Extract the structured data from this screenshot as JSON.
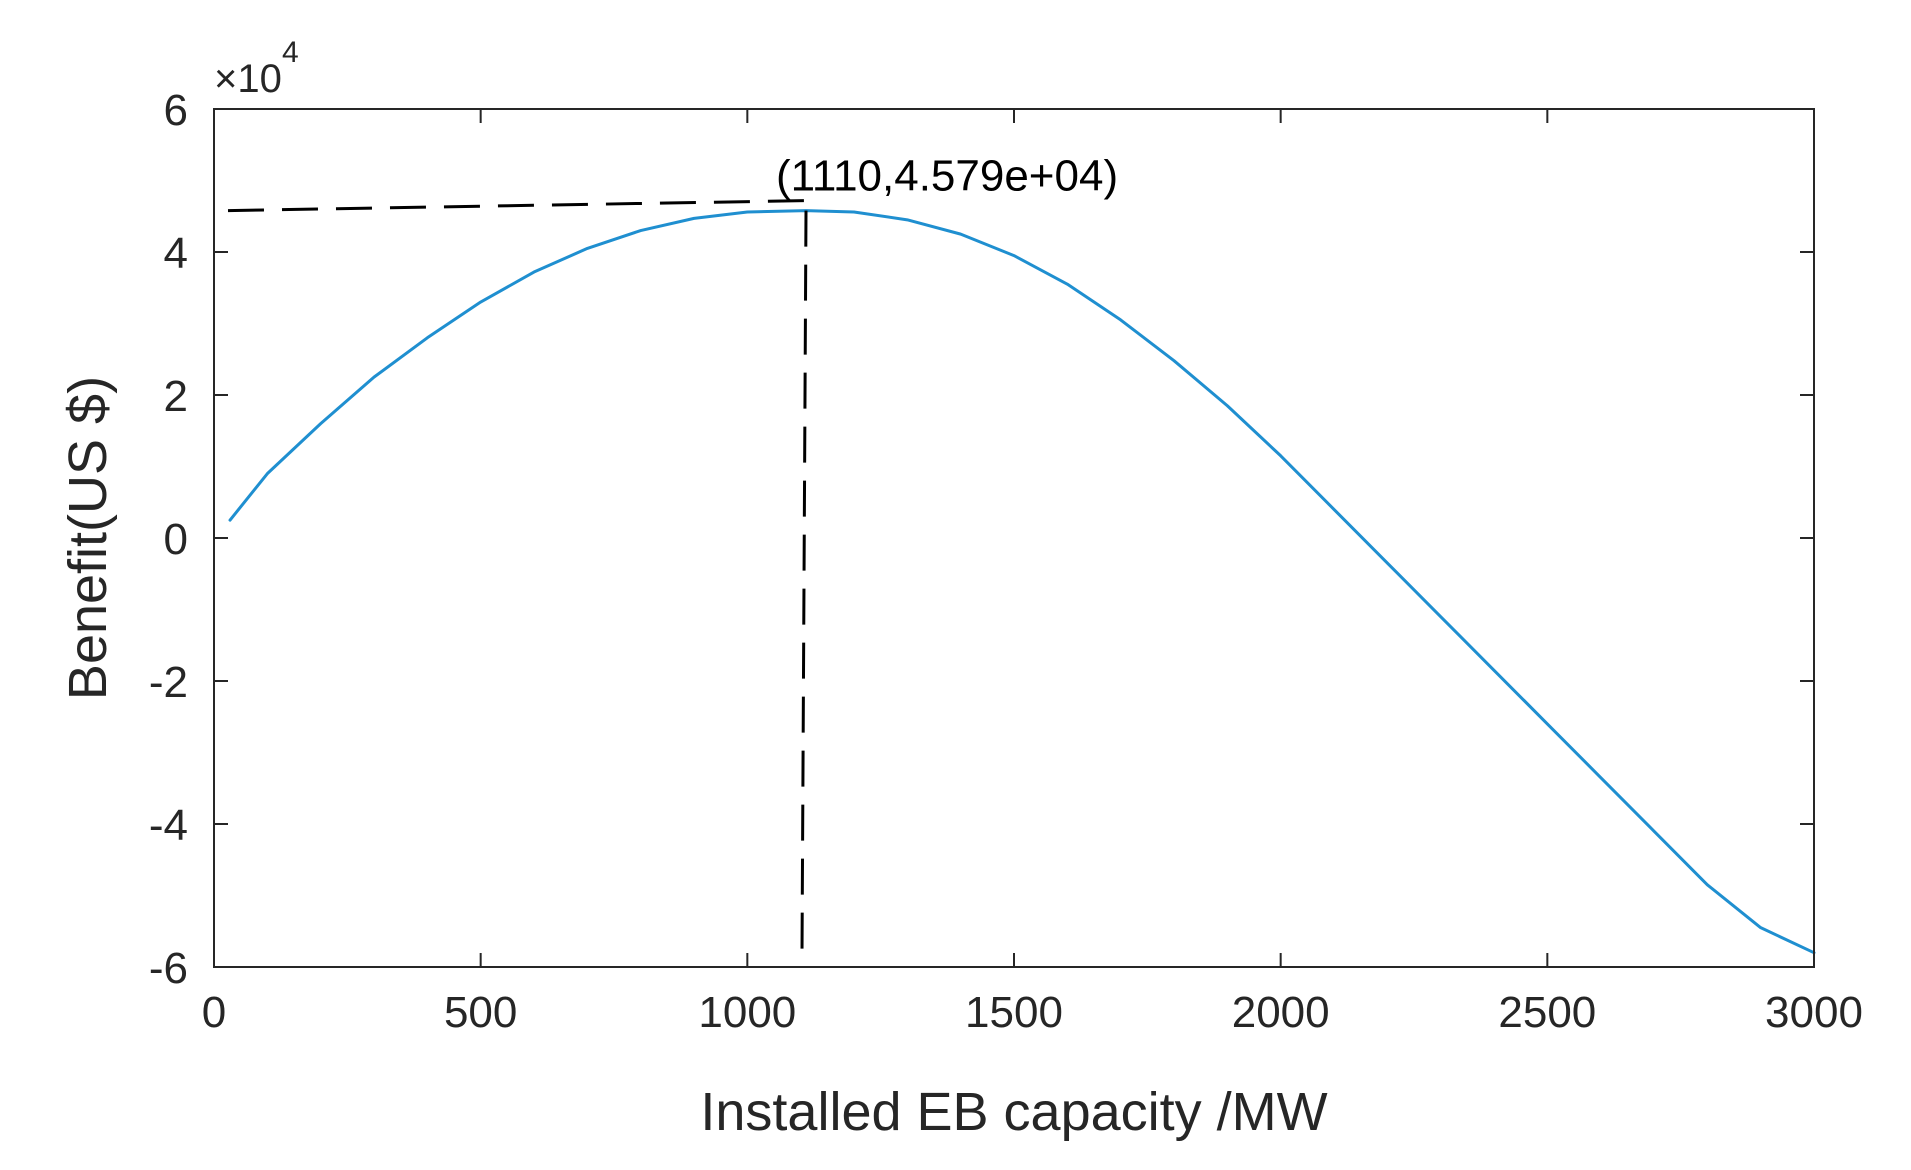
{
  "chart_data": {
    "type": "line",
    "title": "",
    "xlabel": "Installed EB capacity /MW",
    "ylabel": "Benefit(US $)",
    "y_exponent_label": "×10",
    "y_exponent_power": "4",
    "xlim": [
      0,
      3000
    ],
    "ylim": [
      -6,
      6
    ],
    "x_ticks": [
      0,
      500,
      1000,
      1500,
      2000,
      2500,
      3000
    ],
    "x_tick_labels": [
      "0",
      "500",
      "1000",
      "1500",
      "2000",
      "2500",
      "3000"
    ],
    "y_ticks": [
      -6,
      -4,
      -2,
      0,
      2,
      4,
      6
    ],
    "y_tick_labels": [
      "-6",
      "-4",
      "-2",
      "0",
      "2",
      "4",
      "6"
    ],
    "grid": false,
    "series": [
      {
        "name": "Benefit",
        "color": "#1f8fd0",
        "x": [
          30,
          100,
          200,
          300,
          400,
          500,
          600,
          700,
          800,
          900,
          1000,
          1110,
          1200,
          1300,
          1400,
          1500,
          1600,
          1700,
          1800,
          1900,
          2000,
          2100,
          2200,
          2300,
          2400,
          2500,
          2600,
          2700,
          2800,
          2900,
          3000
        ],
        "y": [
          0.25,
          0.9,
          1.6,
          2.25,
          2.8,
          3.3,
          3.72,
          4.05,
          4.3,
          4.47,
          4.56,
          4.579,
          4.56,
          4.45,
          4.25,
          3.95,
          3.55,
          3.05,
          2.48,
          1.85,
          1.15,
          0.4,
          -0.35,
          -1.1,
          -1.85,
          -2.6,
          -3.35,
          -4.1,
          -4.85,
          -5.45,
          -5.8
        ]
      }
    ],
    "annotation": {
      "text": "(1110,4.579e+04)",
      "x": 1110,
      "y": 4.579,
      "guide_color": "#000000"
    },
    "colors": {
      "axis": "#262626",
      "text": "#262626",
      "line": "#1f8fd0"
    }
  }
}
